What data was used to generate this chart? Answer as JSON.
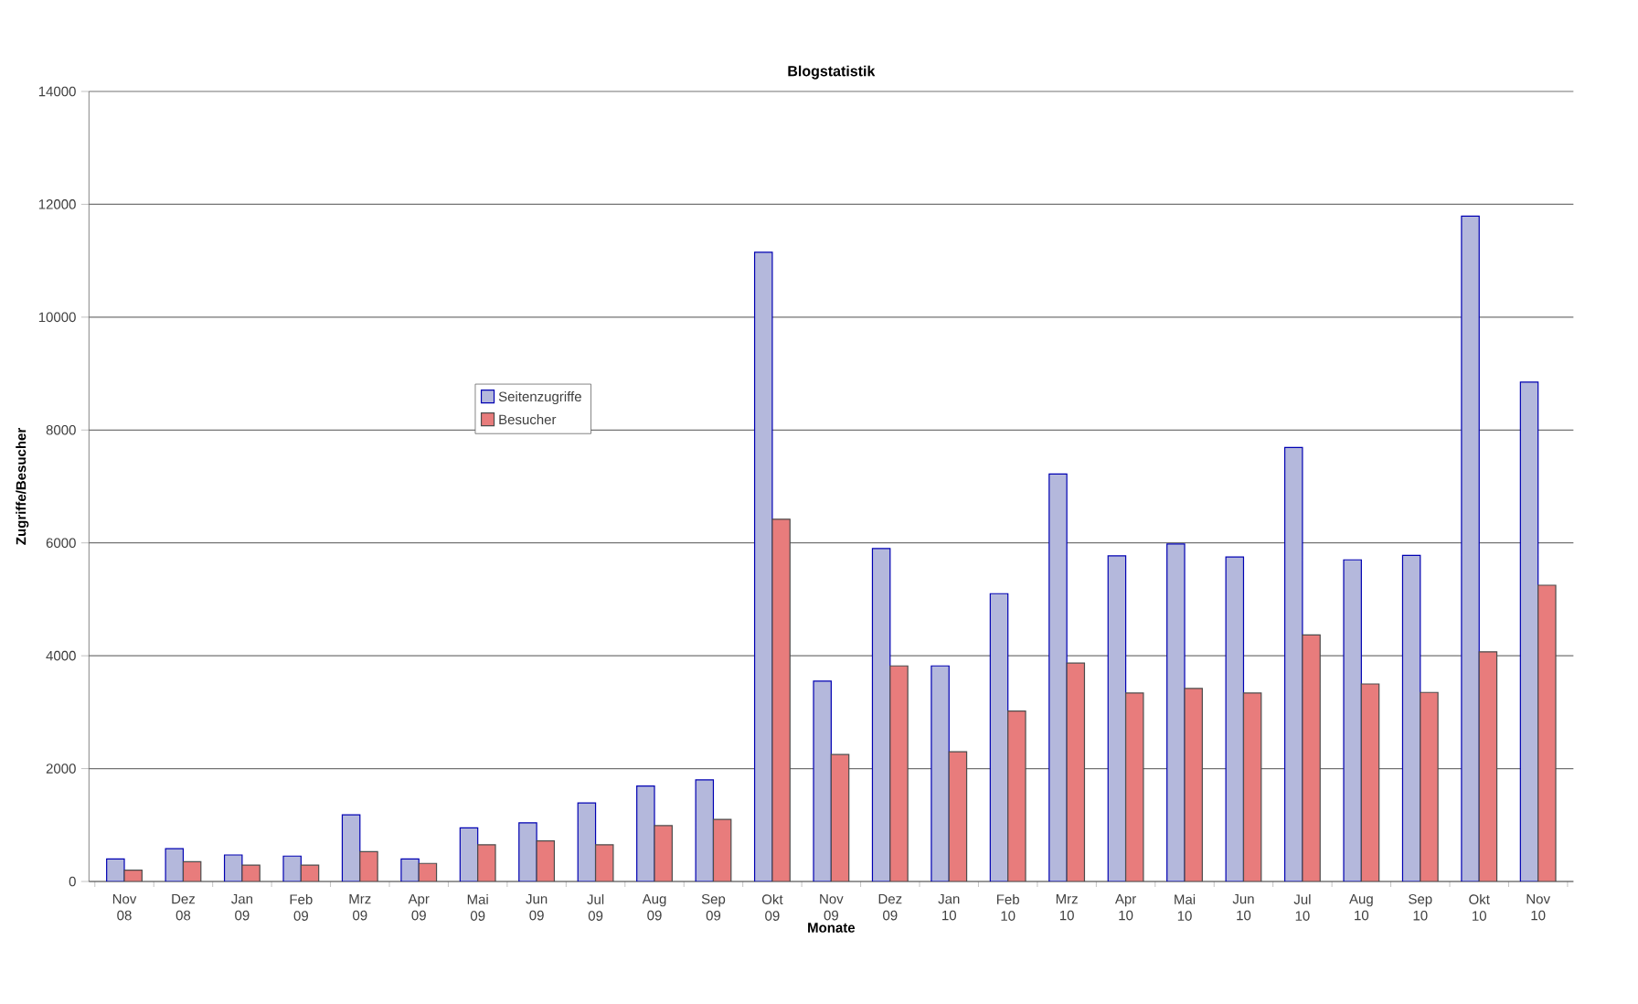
{
  "chart_data": {
    "type": "bar",
    "title": "Blogstatistik",
    "xlabel": "Monate",
    "ylabel": "Zugriffe/Besucher",
    "categories": [
      "Nov 08",
      "Dez 08",
      "Jan 09",
      "Feb 09",
      "Mrz 09",
      "Apr 09",
      "Mai 09",
      "Jun 09",
      "Jul 09",
      "Aug 09",
      "Sep 09",
      "Okt 09",
      "Nov 09",
      "Dez 09",
      "Jan 10",
      "Feb 10",
      "Mrz 10",
      "Apr 10",
      "Mai 10",
      "Jun 10",
      "Jul 10",
      "Aug 10",
      "Sep 10",
      "Okt 10",
      "Nov 10"
    ],
    "series": [
      {
        "name": "Seitenzugriffe",
        "color": "#b4b8dc",
        "values": [
          400,
          580,
          470,
          450,
          1180,
          400,
          950,
          1040,
          1390,
          1690,
          1800,
          11150,
          3550,
          5900,
          3820,
          5100,
          7220,
          5770,
          5980,
          5750,
          7690,
          5700,
          5780,
          11790,
          8850
        ]
      },
      {
        "name": "Besucher",
        "color": "#e87c7c",
        "values": [
          200,
          350,
          290,
          290,
          530,
          320,
          650,
          720,
          650,
          990,
          1100,
          6420,
          2250,
          3820,
          2300,
          3020,
          3870,
          3340,
          3420,
          3340,
          4370,
          3500,
          3350,
          4070,
          5250
        ]
      }
    ],
    "ylim": [
      0,
      14000
    ],
    "yticks": [
      0,
      2000,
      4000,
      6000,
      8000,
      10000,
      12000,
      14000
    ],
    "grid": "y",
    "legend": "left"
  }
}
